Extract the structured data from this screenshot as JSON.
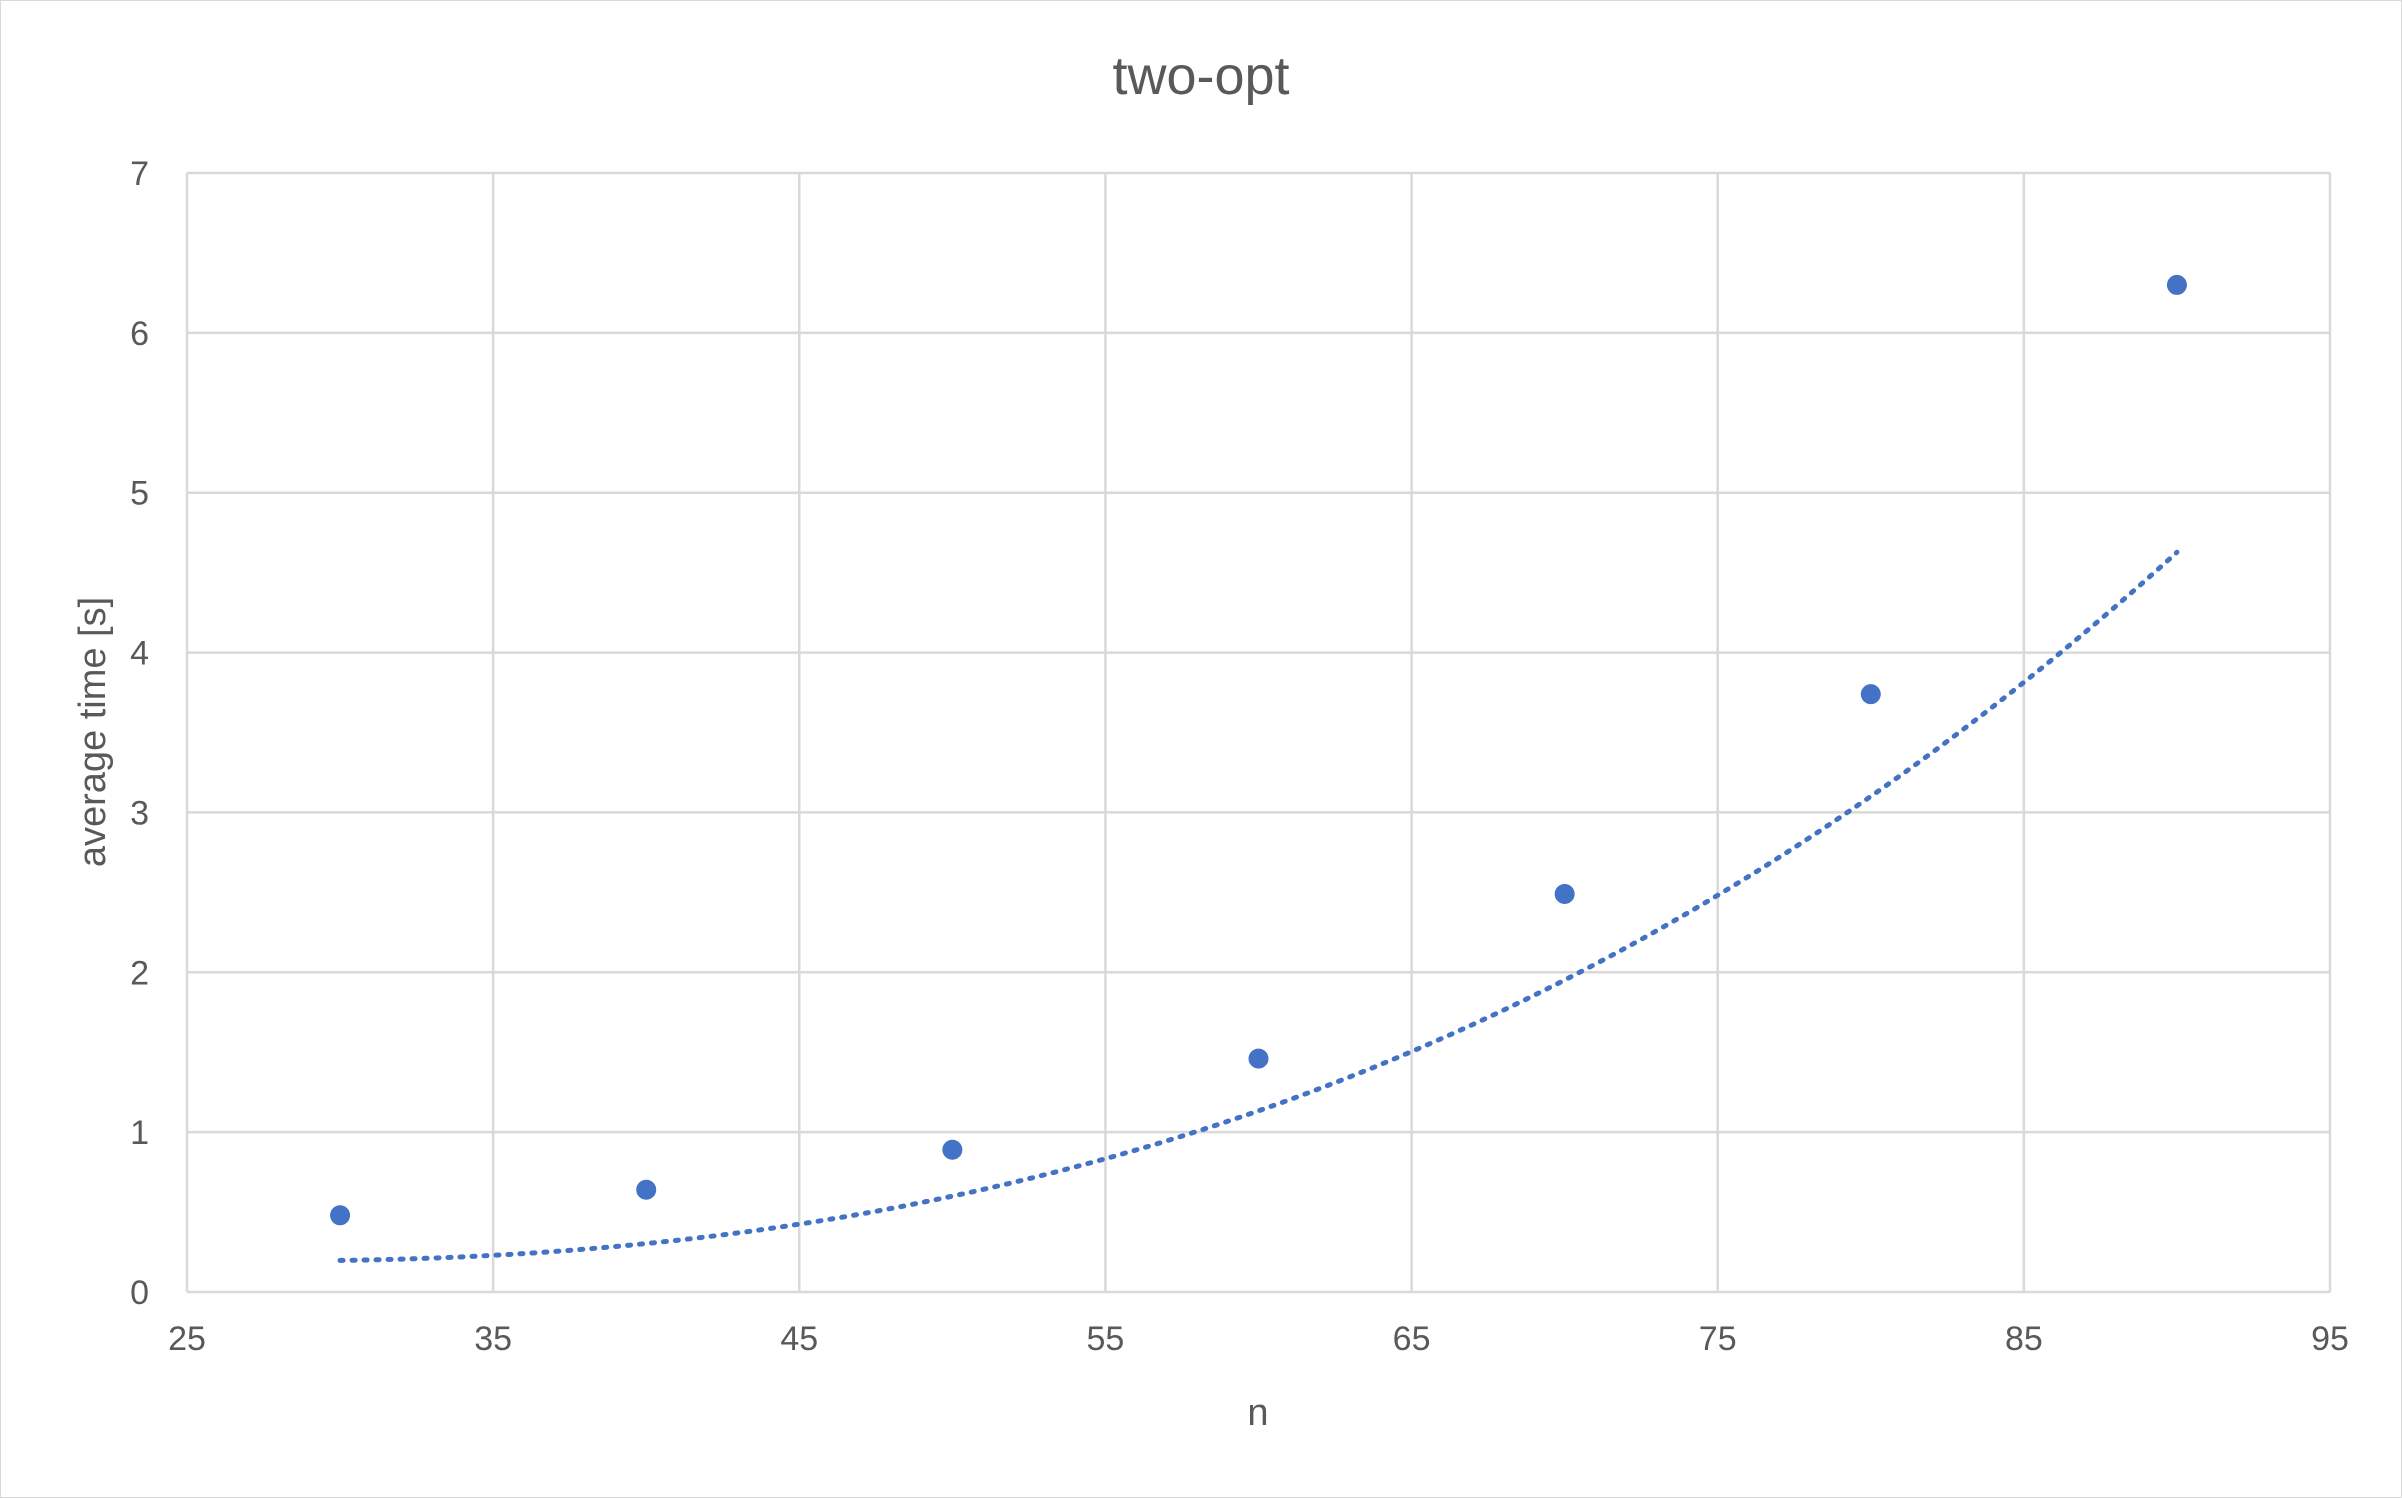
{
  "chart_data": {
    "type": "scatter",
    "title": "two-opt",
    "xlabel": "n",
    "ylabel": "average time [s]",
    "xlim": [
      25,
      95
    ],
    "ylim": [
      0,
      7
    ],
    "xticks": [
      25,
      35,
      45,
      55,
      65,
      75,
      85,
      95
    ],
    "yticks": [
      0,
      1,
      2,
      3,
      4,
      5,
      6,
      7
    ],
    "grid": true,
    "legend": "none",
    "series": [
      {
        "x": [
          30,
          40,
          50,
          60,
          70,
          80,
          90
        ],
        "y": [
          0.48,
          0.64,
          0.89,
          1.46,
          2.49,
          3.74,
          6.3
        ],
        "marker": "circle",
        "color": "#4472C4"
      }
    ],
    "trendline": {
      "kind": "polynomial",
      "style": "dotted",
      "color": "#4472C4",
      "coefficients": [
        0.55958,
        -0.0197,
        2.1071e-05,
        7.7778e-06
      ]
    }
  }
}
